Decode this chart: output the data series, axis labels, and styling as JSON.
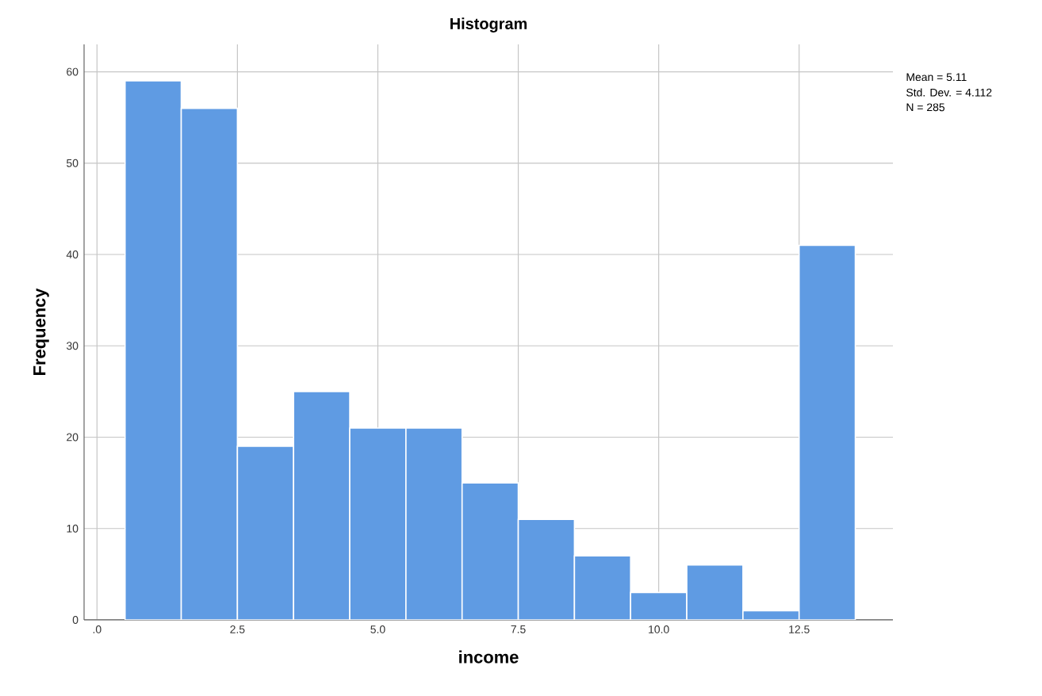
{
  "chart_data": {
    "type": "histogram",
    "title": "Histogram",
    "xlabel": "income",
    "ylabel": "Frequency",
    "bins": [
      0.5,
      1.5,
      2.5,
      3.5,
      4.5,
      5.5,
      6.5,
      7.5,
      8.5,
      9.5,
      10.5,
      11.5,
      12.5,
      13.5
    ],
    "values": [
      59,
      56,
      19,
      25,
      21,
      21,
      15,
      11,
      7,
      3,
      6,
      1,
      41
    ],
    "color": "#5f9be3",
    "xlim": [
      -0.23,
      14.17
    ],
    "ylim": [
      0,
      63
    ],
    "xticks": [
      {
        "value": 0,
        "label": ".0"
      },
      2.5,
      {
        "value": 5,
        "label": "5.0"
      },
      7.5,
      {
        "value": 10,
        "label": "10.0"
      },
      12.5
    ],
    "yticks": [
      0,
      10,
      20,
      30,
      40,
      50,
      60
    ],
    "grid": true,
    "annotations": [
      "Mean = 5.11",
      "Std. Dev. = 4.112",
      "N = 285"
    ]
  }
}
